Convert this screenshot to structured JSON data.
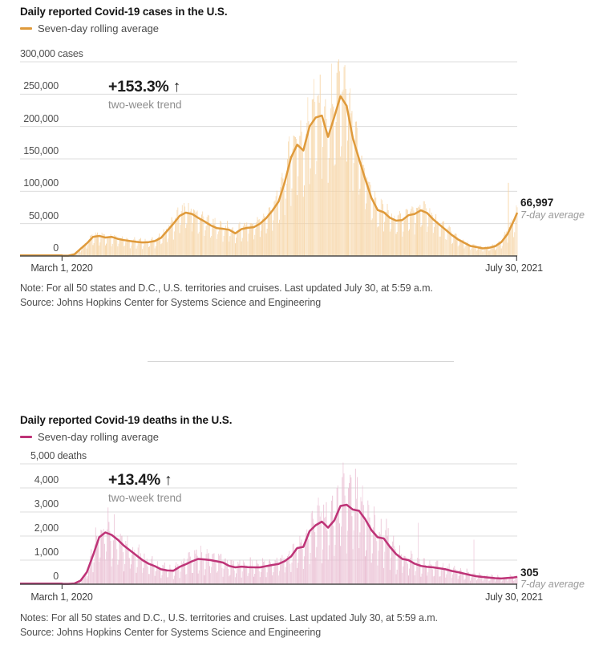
{
  "charts": [
    {
      "title": "Daily reported Covid-19 cases in the U.S.",
      "legend_label": "Seven-day rolling average",
      "annotation": {
        "value": "+153.3%",
        "arrow": "↑",
        "caption": "two-week trend"
      },
      "end_label": {
        "value": "66,997",
        "caption": "7-day average"
      },
      "y_ticks": [
        "300,000 cases",
        "250,000",
        "200,000",
        "150,000",
        "100,000",
        "50,000",
        "0"
      ],
      "x_start_label": "March 1, 2020",
      "x_end_label": "July 30, 2021",
      "note_line": "Note: For all 50 states and D.C., U.S. territories and cruises. Last updated July 30, at 5:59 a.m.",
      "source_line": "Source: Johns Hopkins Center for Systems Science and Engineering",
      "colors": {
        "line": "#df9a3b",
        "bar": "#f6d3a2",
        "grid": "#dcdcdc",
        "axis": "#4a4a4a"
      }
    },
    {
      "title": "Daily reported Covid-19 deaths in the U.S.",
      "legend_label": "Seven-day rolling average",
      "annotation": {
        "value": "+13.4%",
        "arrow": "↑",
        "caption": "two-week trend"
      },
      "end_label": {
        "value": "305",
        "caption": "7-day average"
      },
      "y_ticks": [
        "5,000 deaths",
        "4,000",
        "3,000",
        "2,000",
        "1,000",
        "0"
      ],
      "x_start_label": "March 1, 2020",
      "x_end_label": "July 30, 2021",
      "note_line": "Notes: For all 50 states and D.C., U.S. territories and cruises. Last updated July 30, at 5:59 a.m.",
      "source_line": "Source: Johns Hopkins Center for Systems Science and Engineering",
      "colors": {
        "line": "#be3377",
        "bar": "#e9bcd1",
        "grid": "#dcdcdc",
        "axis": "#4a4a4a"
      }
    }
  ],
  "chart_data": [
    {
      "type": "bar+line",
      "title": "Daily reported Covid-19 cases in the U.S.",
      "ylabel": "cases",
      "ylim": [
        0,
        300000
      ],
      "grid": true,
      "x_range": {
        "start": "2020-03-01",
        "end": "2021-07-30"
      },
      "series": [
        {
          "name": "Seven-day rolling average",
          "x_start": "2020-03-01",
          "x_step_days": 7,
          "values": [
            70,
            400,
            2600,
            11000,
            19500,
            29500,
            31000,
            28500,
            29500,
            26500,
            24500,
            23000,
            21800,
            21000,
            21500,
            23000,
            28000,
            39000,
            50000,
            62000,
            67000,
            65000,
            59000,
            53500,
            47500,
            43000,
            42000,
            40500,
            35000,
            41500,
            43500,
            44500,
            50000,
            58500,
            70000,
            84000,
            114000,
            152000,
            172000,
            163000,
            200000,
            214000,
            217000,
            184000,
            215000,
            247000,
            232000,
            182000,
            150000,
            119000,
            90000,
            71000,
            67500,
            59000,
            54500,
            55500,
            63000,
            65000,
            70500,
            66500,
            56500,
            48500,
            40500,
            32500,
            25500,
            20500,
            15500,
            13800,
            11800,
            12700,
            15000,
            21500,
            34000,
            54000
          ],
          "final_point": {
            "date": "2021-07-30",
            "value": 66997
          }
        }
      ],
      "daily_bars": {
        "description": "daily reported cases, derived from rolling average with weekday reporting pattern",
        "weekday_factors_sun_to_sat": [
          0.58,
          0.72,
          1.02,
          1.12,
          1.16,
          1.18,
          1.06
        ],
        "noise_amplitude": 0.13,
        "seed": 7,
        "outliers": [
          {
            "day_from_march1": 290,
            "value": 249000
          },
          {
            "day_from_march1": 305,
            "value": 297000
          },
          {
            "day_from_march1": 311,
            "value": 283000
          },
          {
            "day_from_march1": 505,
            "value": 113000
          }
        ]
      }
    },
    {
      "type": "bar+line",
      "title": "Daily reported Covid-19 deaths in the U.S.",
      "ylabel": "deaths",
      "ylim": [
        0,
        5000
      ],
      "grid": true,
      "x_range": {
        "start": "2020-03-01",
        "end": "2021-07-30"
      },
      "series": [
        {
          "name": "Seven-day rolling average",
          "x_start": "2020-03-01",
          "x_step_days": 7,
          "values": [
            1,
            4,
            30,
            150,
            500,
            1200,
            1950,
            2150,
            2050,
            1850,
            1600,
            1400,
            1200,
            1000,
            850,
            750,
            620,
            570,
            560,
            720,
            830,
            950,
            1050,
            1030,
            1000,
            950,
            900,
            760,
            700,
            730,
            710,
            700,
            700,
            750,
            800,
            840,
            960,
            1150,
            1500,
            1550,
            2200,
            2450,
            2600,
            2350,
            2650,
            3250,
            3300,
            3100,
            3050,
            2700,
            2250,
            1950,
            1900,
            1550,
            1250,
            1050,
            1000,
            850,
            760,
            720,
            700,
            660,
            620,
            550,
            500,
            440,
            380,
            330,
            300,
            275,
            250,
            235,
            255,
            280
          ],
          "final_point": {
            "date": "2021-07-30",
            "value": 305
          }
        }
      ],
      "daily_bars": {
        "description": "daily reported deaths, derived from rolling average with weekday reporting pattern",
        "weekday_factors_sun_to_sat": [
          0.42,
          0.62,
          1.12,
          1.3,
          1.25,
          1.2,
          0.95
        ],
        "noise_amplitude": 0.22,
        "seed": 3,
        "outliers": [
          {
            "day_from_march1": 312,
            "value": 4100
          },
          {
            "day_from_march1": 317,
            "value": 4450
          },
          {
            "day_from_march1": 325,
            "value": 4200
          },
          {
            "day_from_march1": 403,
            "value": 2550
          },
          {
            "day_from_march1": 466,
            "value": 1850
          }
        ]
      }
    }
  ]
}
